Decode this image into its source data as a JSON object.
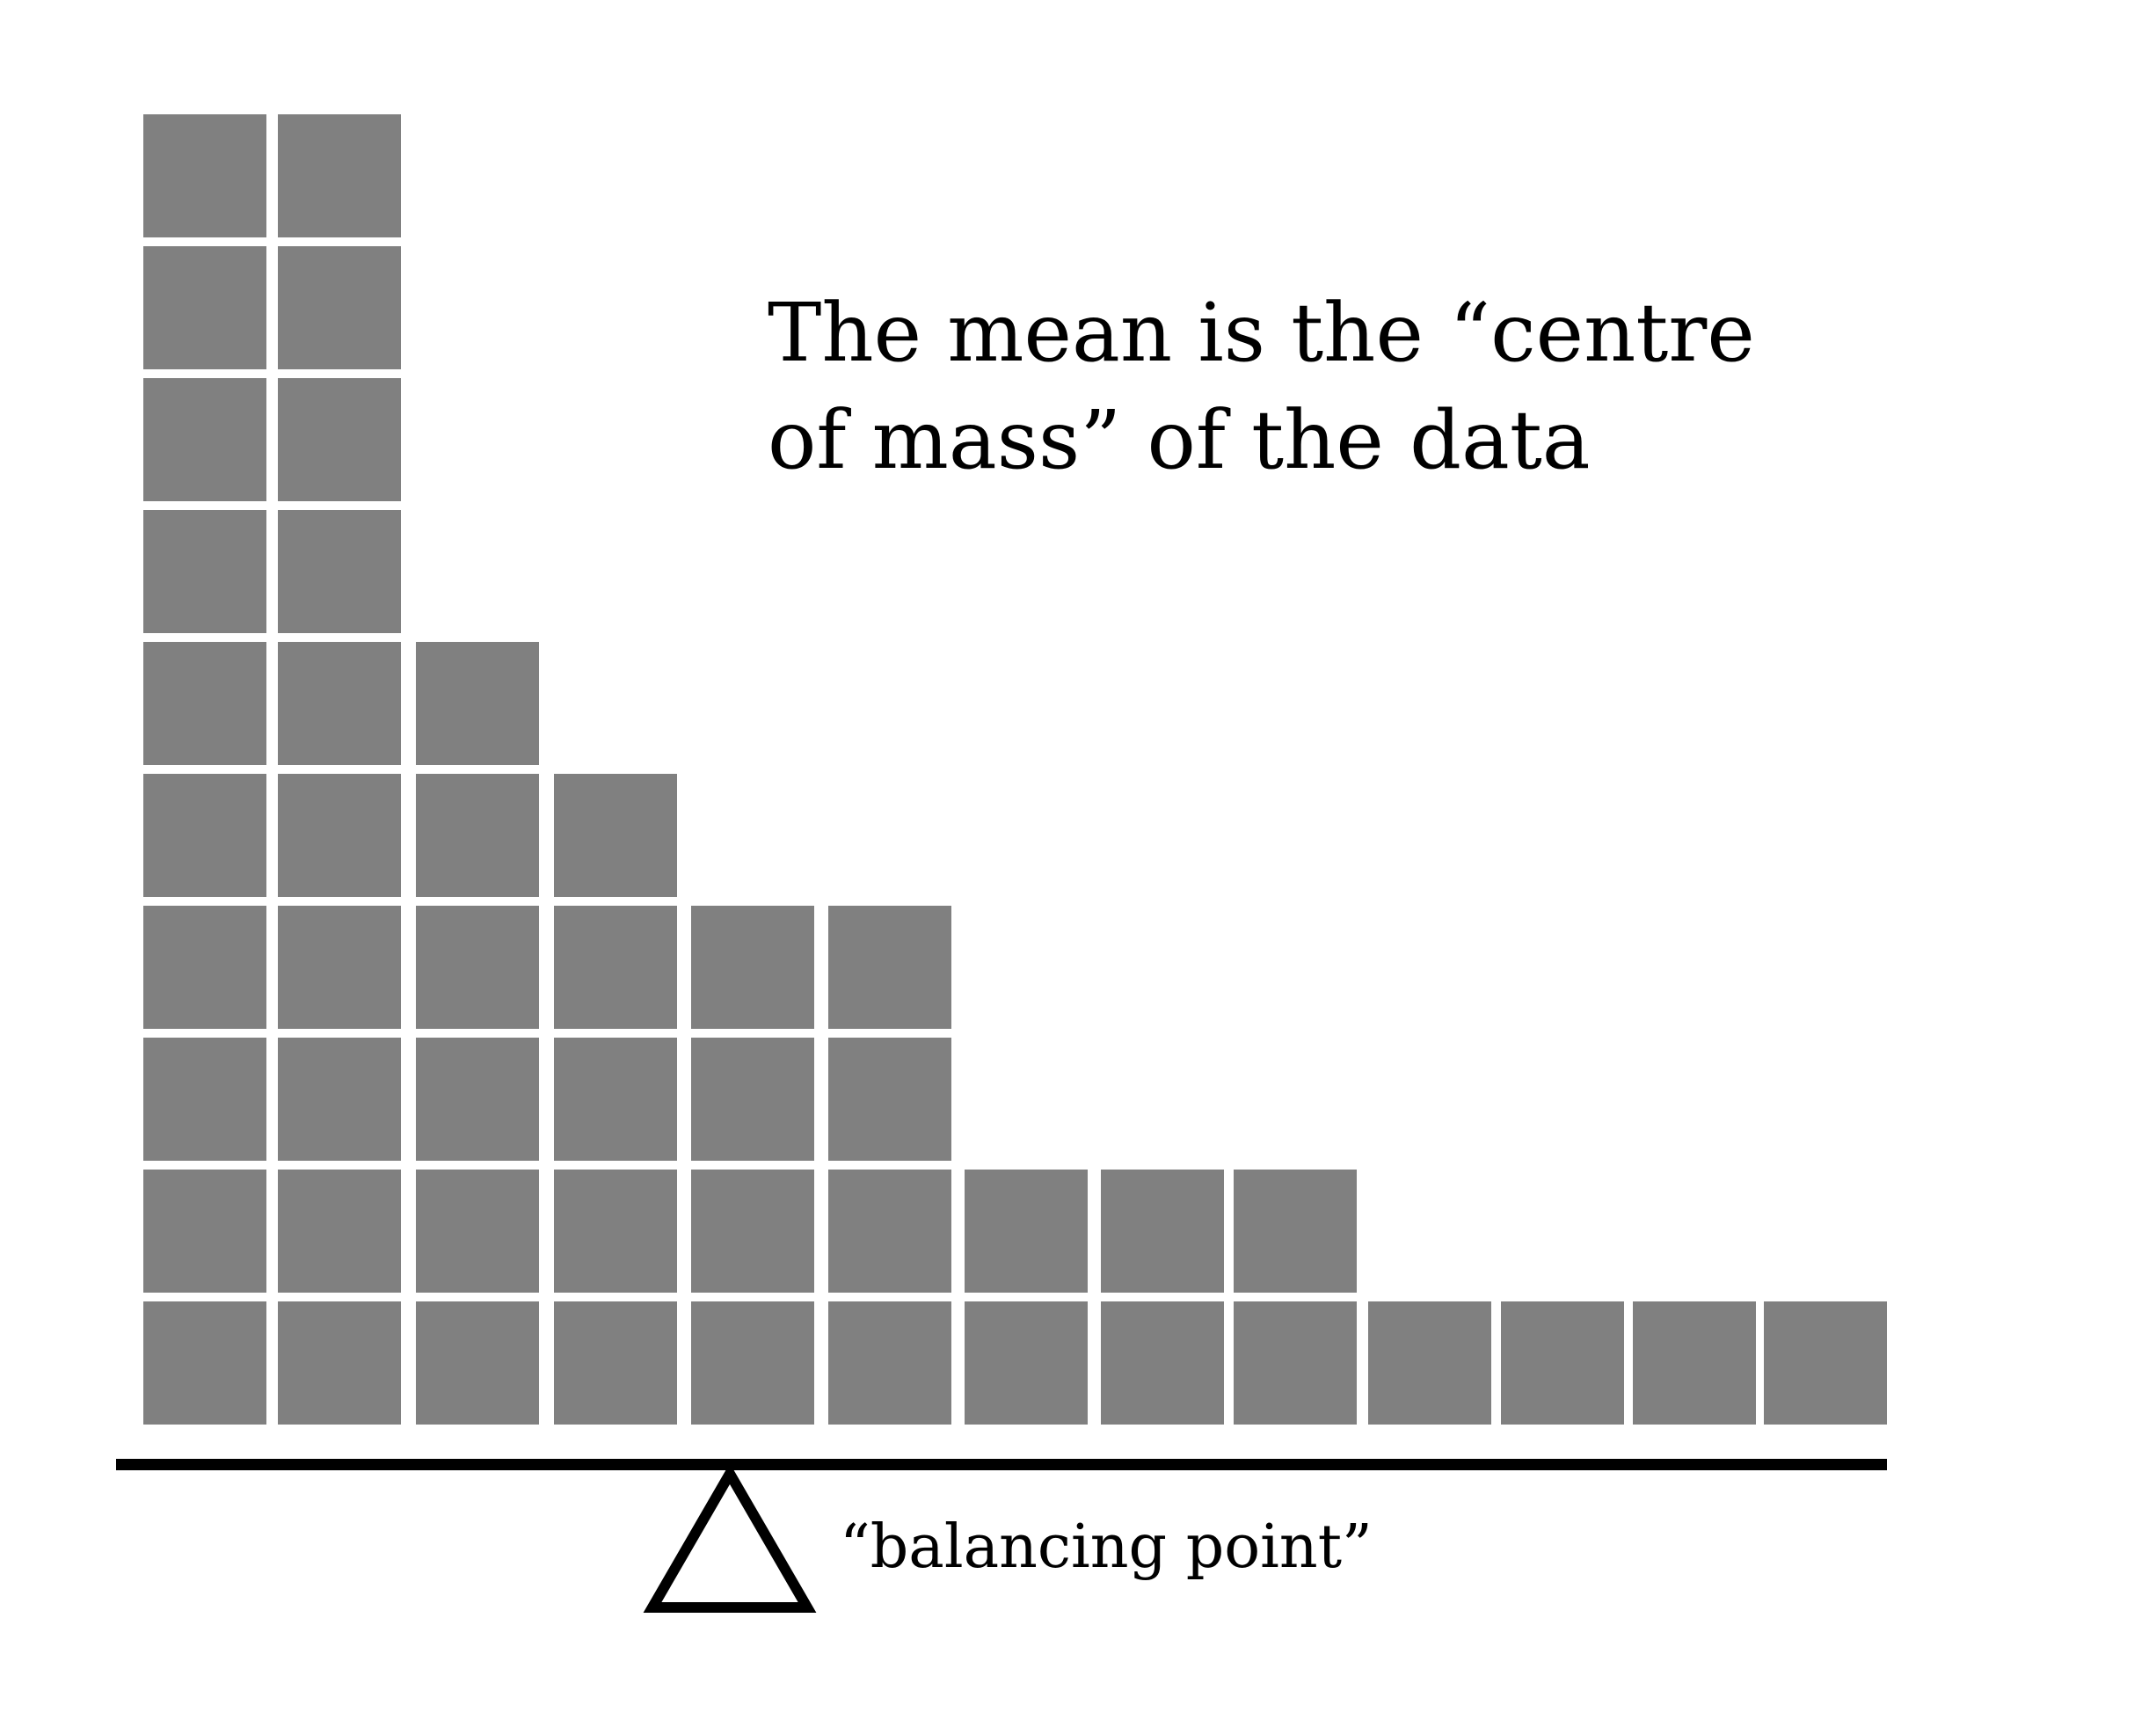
{
  "title": {
    "line1": "The mean is the “centre",
    "line2": "of mass” of the data"
  },
  "fulcrum_label": "“balancing point”",
  "chart_data": {
    "type": "bar",
    "description_of_marks": "stacked unit squares per column",
    "columns": [
      1,
      2,
      3,
      4,
      5,
      6,
      7,
      8,
      9,
      10,
      11,
      12,
      13
    ],
    "counts": [
      10,
      10,
      6,
      5,
      4,
      4,
      2,
      2,
      2,
      1,
      1,
      1,
      1
    ]
  },
  "colors": {
    "block": "#808080",
    "beam": "#000000",
    "fulcrum_stroke": "#000000",
    "background": "#ffffff"
  }
}
